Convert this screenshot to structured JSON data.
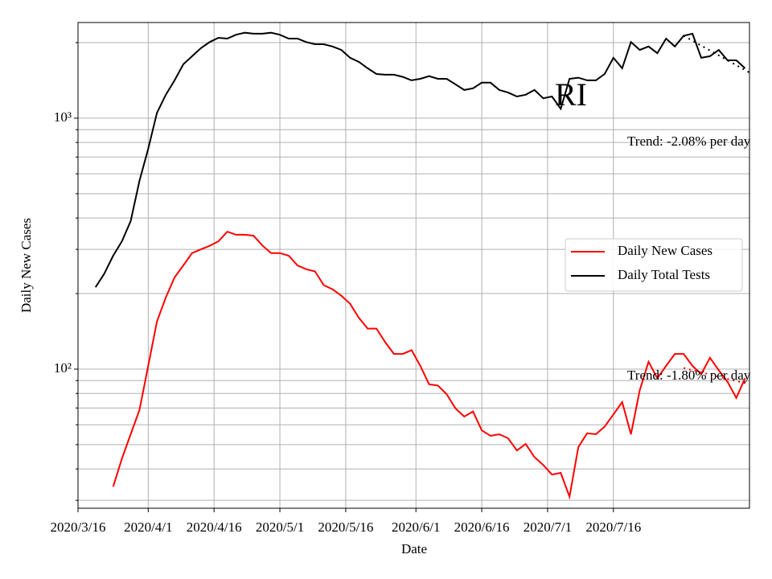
{
  "chart_data": {
    "type": "line",
    "title": "RI",
    "x_label": "Date",
    "y_label": "Daily New Cases",
    "log_y": true,
    "grid": true,
    "legend": "center right",
    "xlim": [
      "2020/3/16",
      "2020/8/16"
    ],
    "xticks": [
      "2020/3/16",
      "2020/4/1",
      "2020/4/16",
      "2020/5/1",
      "2020/5/16",
      "2020/6/1",
      "2020/6/16",
      "2020/7/1",
      "2020/7/16"
    ],
    "ylim": [
      27.9,
      2405
    ],
    "yticks": [
      {
        "value": 100,
        "label": "10²"
      },
      {
        "value": 1000,
        "label": "10³"
      }
    ],
    "yminor": [
      30,
      40,
      50,
      60,
      70,
      80,
      90,
      200,
      300,
      400,
      500,
      600,
      700,
      800,
      900,
      2000
    ],
    "x": [
      "2020/3/20",
      "2020/3/22",
      "2020/3/24",
      "2020/3/26",
      "2020/3/28",
      "2020/3/30",
      "2020/4/1",
      "2020/4/3",
      "2020/4/5",
      "2020/4/7",
      "2020/4/9",
      "2020/4/11",
      "2020/4/13",
      "2020/4/15",
      "2020/4/17",
      "2020/4/19",
      "2020/4/21",
      "2020/4/23",
      "2020/4/25",
      "2020/4/27",
      "2020/4/29",
      "2020/5/1",
      "2020/5/3",
      "2020/5/5",
      "2020/5/7",
      "2020/5/9",
      "2020/5/11",
      "2020/5/13",
      "2020/5/15",
      "2020/5/17",
      "2020/5/19",
      "2020/5/21",
      "2020/5/23",
      "2020/5/25",
      "2020/5/27",
      "2020/5/29",
      "2020/5/31",
      "2020/6/2",
      "2020/6/4",
      "2020/6/6",
      "2020/6/8",
      "2020/6/10",
      "2020/6/12",
      "2020/6/14",
      "2020/6/16",
      "2020/6/18",
      "2020/6/20",
      "2020/6/22",
      "2020/6/24",
      "2020/6/26",
      "2020/6/28",
      "2020/6/30",
      "2020/7/2",
      "2020/7/4",
      "2020/7/6",
      "2020/7/8",
      "2020/7/10",
      "2020/7/12",
      "2020/7/14",
      "2020/7/16",
      "2020/7/18",
      "2020/7/20",
      "2020/7/22",
      "2020/7/24",
      "2020/7/26",
      "2020/7/28",
      "2020/7/30",
      "2020/8/1",
      "2020/8/3",
      "2020/8/5",
      "2020/8/7",
      "2020/8/9",
      "2020/8/11",
      "2020/8/13",
      "2020/8/15"
    ],
    "series": [
      {
        "name": "Daily New Cases",
        "color": "#ff0000",
        "values": [
          null,
          null,
          34,
          44,
          55,
          68.7,
          103,
          155,
          193,
          232,
          259,
          290,
          300,
          310,
          323,
          353,
          343,
          343,
          340,
          311,
          290,
          290,
          283,
          259,
          250,
          245,
          216,
          208,
          196,
          182,
          160,
          145,
          145,
          128,
          115,
          115,
          119,
          103,
          87,
          86,
          79.5,
          69.8,
          64.7,
          67.8,
          57,
          54.2,
          55,
          53,
          47.4,
          50.3,
          44.6,
          41.5,
          38,
          38.6,
          31,
          48.9,
          55.5,
          55,
          59,
          66,
          73.9,
          55,
          82.5,
          107,
          92,
          103,
          115,
          115,
          103,
          95.6,
          111,
          99,
          89,
          76.7,
          92
        ]
      },
      {
        "name": "Daily Total Tests",
        "color": "#000000",
        "values": [
          212,
          240,
          283,
          323,
          389,
          562,
          755,
          1050,
          1240,
          1415,
          1640,
          1765,
          1900,
          2010,
          2090,
          2075,
          2150,
          2190,
          2170,
          2170,
          2190,
          2150,
          2075,
          2075,
          2010,
          1970,
          1970,
          1930,
          1870,
          1740,
          1675,
          1580,
          1500,
          1490,
          1490,
          1460,
          1415,
          1435,
          1470,
          1435,
          1435,
          1365,
          1295,
          1315,
          1385,
          1385,
          1295,
          1265,
          1220,
          1240,
          1295,
          1200,
          1220,
          1090,
          1435,
          1450,
          1415,
          1415,
          1500,
          1740,
          1580,
          2010,
          1870,
          1930,
          1815,
          2075,
          1930,
          2130,
          2170,
          1740,
          1765,
          1870,
          1700,
          1700,
          1580
        ]
      }
    ],
    "trends": [
      {
        "color": "#000000",
        "x": [
          "2020/8/1",
          "2020/8/16"
        ],
        "values": [
          2130,
          1520
        ]
      },
      {
        "color": "#ff0000",
        "x": [
          "2020/8/1",
          "2020/8/16"
        ],
        "values": [
          101,
          87
        ]
      }
    ],
    "annotations": [
      "Trend: -2.08% per day",
      "Trend: -1.80% per day"
    ]
  }
}
